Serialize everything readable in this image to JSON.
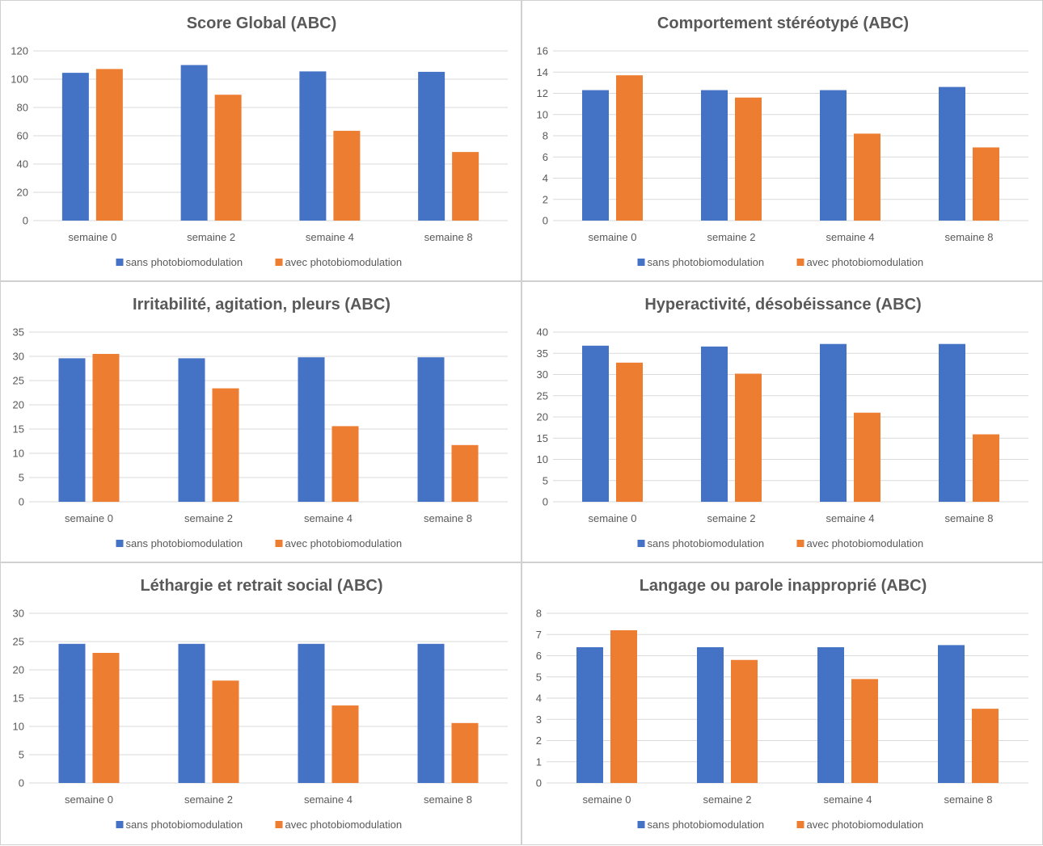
{
  "chart_data": [
    {
      "type": "bar",
      "title": "Score Global (ABC)",
      "categories": [
        "semaine 0",
        "semaine 2",
        "semaine 4",
        "semaine 8"
      ],
      "series": [
        {
          "name": "sans photobiomodulation",
          "color": "#4472c4",
          "values": [
            104.5,
            110,
            105.5,
            105.2
          ]
        },
        {
          "name": "avec photobiomodulation",
          "color": "#ed7d31",
          "values": [
            107.2,
            89,
            63.5,
            48.5
          ]
        }
      ],
      "ylim": [
        0,
        120
      ],
      "yticks": [
        0,
        20,
        40,
        60,
        80,
        100,
        120
      ],
      "grid": true,
      "legend": "bottom"
    },
    {
      "type": "bar",
      "title": "Comportement stéréotypé (ABC)",
      "categories": [
        "semaine 0",
        "semaine 2",
        "semaine 4",
        "semaine 8"
      ],
      "series": [
        {
          "name": "sans photobiomodulation",
          "color": "#4472c4",
          "values": [
            12.3,
            12.3,
            12.3,
            12.6
          ]
        },
        {
          "name": "avec photobiomodulation",
          "color": "#ed7d31",
          "values": [
            13.7,
            11.6,
            8.2,
            6.9
          ]
        }
      ],
      "ylim": [
        0,
        16
      ],
      "yticks": [
        0,
        2,
        4,
        6,
        8,
        10,
        12,
        14,
        16
      ],
      "grid": true,
      "legend": "bottom"
    },
    {
      "type": "bar",
      "title": "Irritabilité, agitation, pleurs (ABC)",
      "categories": [
        "semaine 0",
        "semaine 2",
        "semaine 4",
        "semaine 8"
      ],
      "series": [
        {
          "name": "sans photobiomodulation",
          "color": "#4472c4",
          "values": [
            29.6,
            29.6,
            29.8,
            29.8
          ]
        },
        {
          "name": "avec photobiomodulation",
          "color": "#ed7d31",
          "values": [
            30.5,
            23.4,
            15.6,
            11.7
          ]
        }
      ],
      "ylim": [
        0,
        35
      ],
      "yticks": [
        0,
        5,
        10,
        15,
        20,
        25,
        30,
        35
      ],
      "grid": true,
      "legend": "bottom"
    },
    {
      "type": "bar",
      "title": "Hyperactivité, désobéissance (ABC)",
      "categories": [
        "semaine 0",
        "semaine 2",
        "semaine 4",
        "semaine 8"
      ],
      "series": [
        {
          "name": "sans photobiomodulation",
          "color": "#4472c4",
          "values": [
            36.8,
            36.6,
            37.2,
            37.2
          ]
        },
        {
          "name": "avec photobiomodulation",
          "color": "#ed7d31",
          "values": [
            32.8,
            30.2,
            21.0,
            15.9
          ]
        }
      ],
      "ylim": [
        0,
        40
      ],
      "yticks": [
        0,
        5,
        10,
        15,
        20,
        25,
        30,
        35,
        40
      ],
      "grid": true,
      "legend": "bottom"
    },
    {
      "type": "bar",
      "title": "Léthargie et retrait social (ABC)",
      "categories": [
        "semaine 0",
        "semaine 2",
        "semaine 4",
        "semaine 8"
      ],
      "series": [
        {
          "name": "sans photobiomodulation",
          "color": "#4472c4",
          "values": [
            24.6,
            24.6,
            24.6,
            24.6
          ]
        },
        {
          "name": "avec photobiomodulation",
          "color": "#ed7d31",
          "values": [
            23.0,
            18.1,
            13.7,
            10.6
          ]
        }
      ],
      "ylim": [
        0,
        30
      ],
      "yticks": [
        0,
        5,
        10,
        15,
        20,
        25,
        30
      ],
      "grid": true,
      "legend": "bottom"
    },
    {
      "type": "bar",
      "title": "Langage ou parole inapproprié (ABC)",
      "categories": [
        "semaine 0",
        "semaine 2",
        "semaine 4",
        "semaine 8"
      ],
      "series": [
        {
          "name": "sans photobiomodulation",
          "color": "#4472c4",
          "values": [
            6.4,
            6.4,
            6.4,
            6.5
          ]
        },
        {
          "name": "avec photobiomodulation",
          "color": "#ed7d31",
          "values": [
            7.2,
            5.8,
            4.9,
            3.5
          ]
        }
      ],
      "ylim": [
        0,
        8
      ],
      "yticks": [
        0,
        1,
        2,
        3,
        4,
        5,
        6,
        7,
        8
      ],
      "grid": true,
      "legend": "bottom"
    }
  ]
}
